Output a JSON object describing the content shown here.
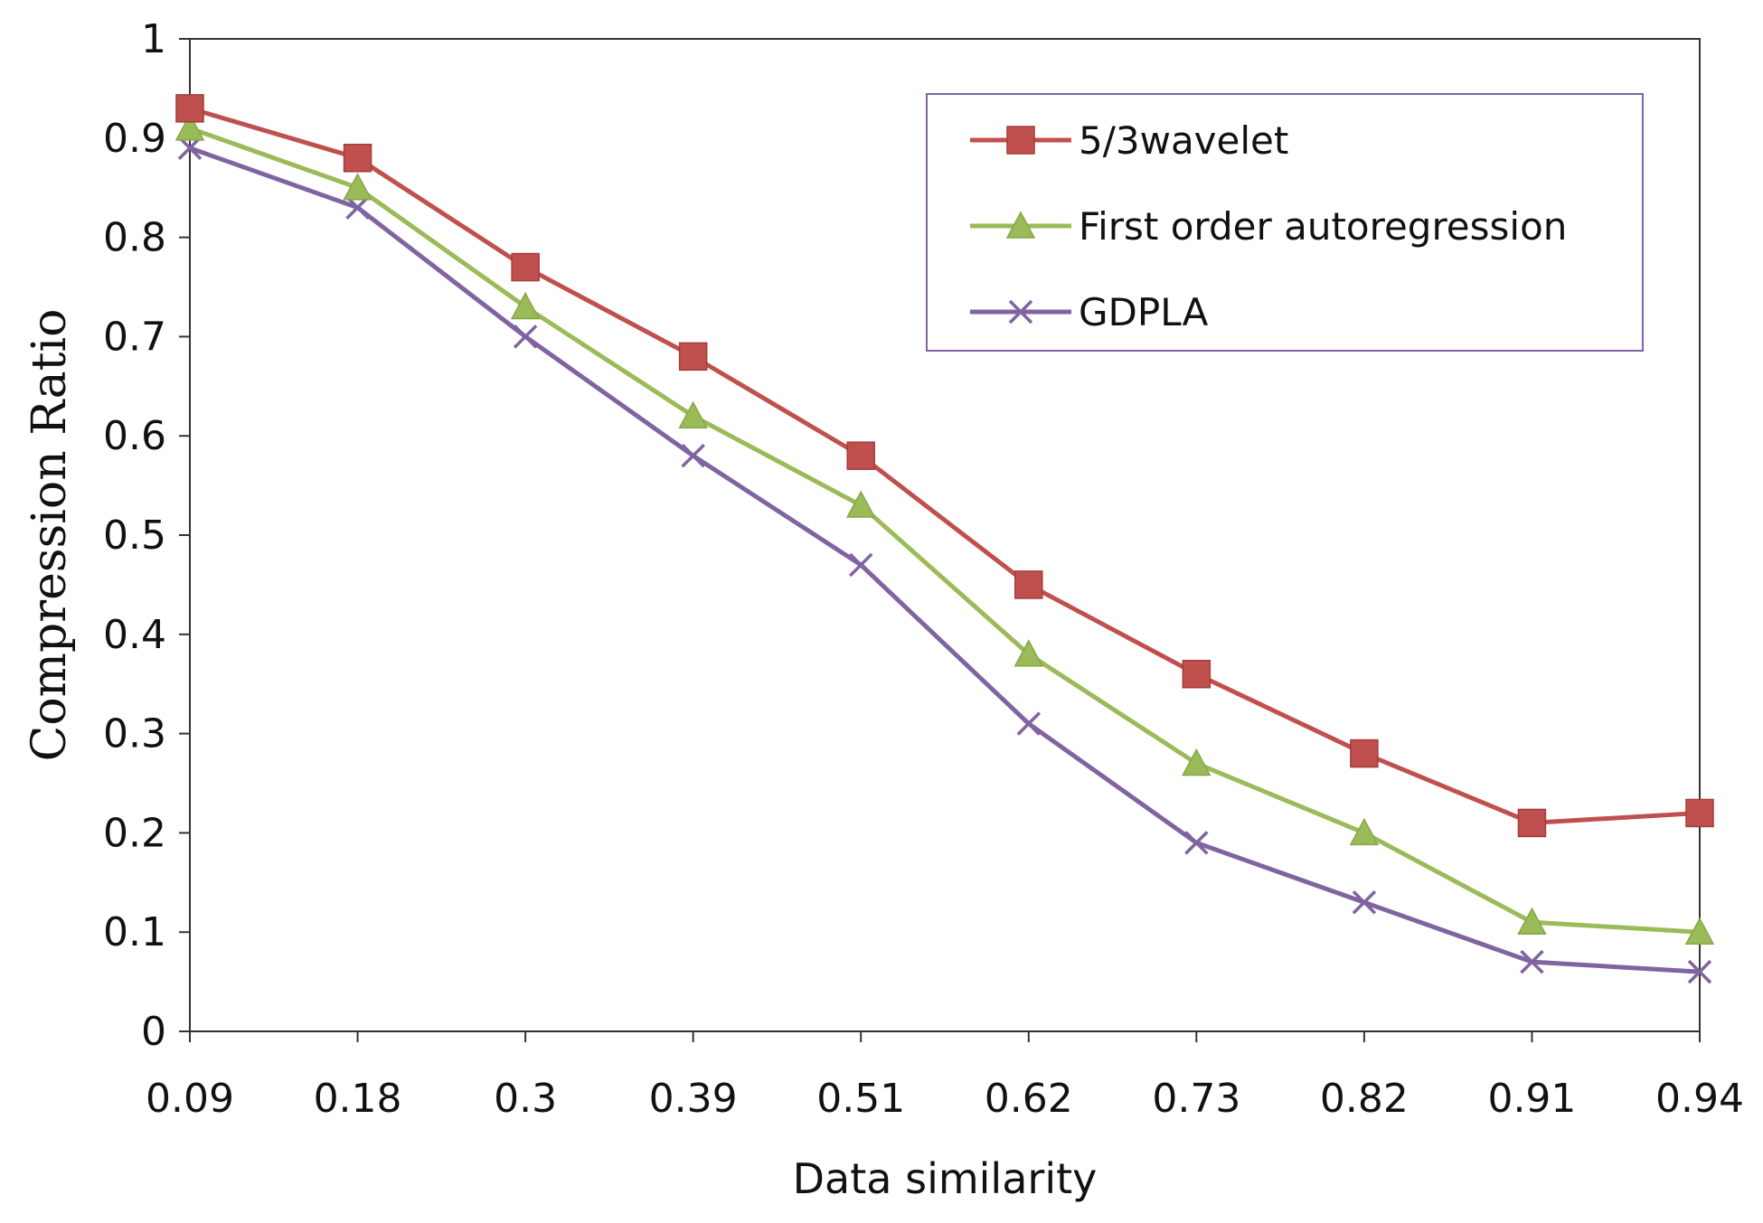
{
  "chart_data": {
    "type": "line",
    "title": "",
    "xlabel": "Data similarity",
    "ylabel": "Compression Ratio",
    "categories": [
      "0.09",
      "0.18",
      "0.3",
      "0.39",
      "0.51",
      "0.62",
      "0.73",
      "0.82",
      "0.91",
      "0.94"
    ],
    "ylim": [
      0,
      1
    ],
    "yticks": [
      "0",
      "0.1",
      "0.2",
      "0.3",
      "0.4",
      "0.5",
      "0.6",
      "0.7",
      "0.8",
      "0.9",
      "1"
    ],
    "grid": false,
    "legend_position": "top-right",
    "series": [
      {
        "name": "5/3wavelet",
        "marker": "square",
        "color": "#c0504d",
        "values": [
          0.93,
          0.88,
          0.77,
          0.68,
          0.58,
          0.45,
          0.36,
          0.28,
          0.21,
          0.22
        ]
      },
      {
        "name": "First order autoregression",
        "marker": "triangle",
        "color": "#9bbb59",
        "values": [
          0.91,
          0.85,
          0.73,
          0.62,
          0.53,
          0.38,
          0.27,
          0.2,
          0.11,
          0.1
        ]
      },
      {
        "name": "GDPLA",
        "marker": "x",
        "color": "#8064a2",
        "values": [
          0.89,
          0.83,
          0.7,
          0.58,
          0.47,
          0.31,
          0.19,
          0.13,
          0.07,
          0.06
        ]
      }
    ]
  }
}
